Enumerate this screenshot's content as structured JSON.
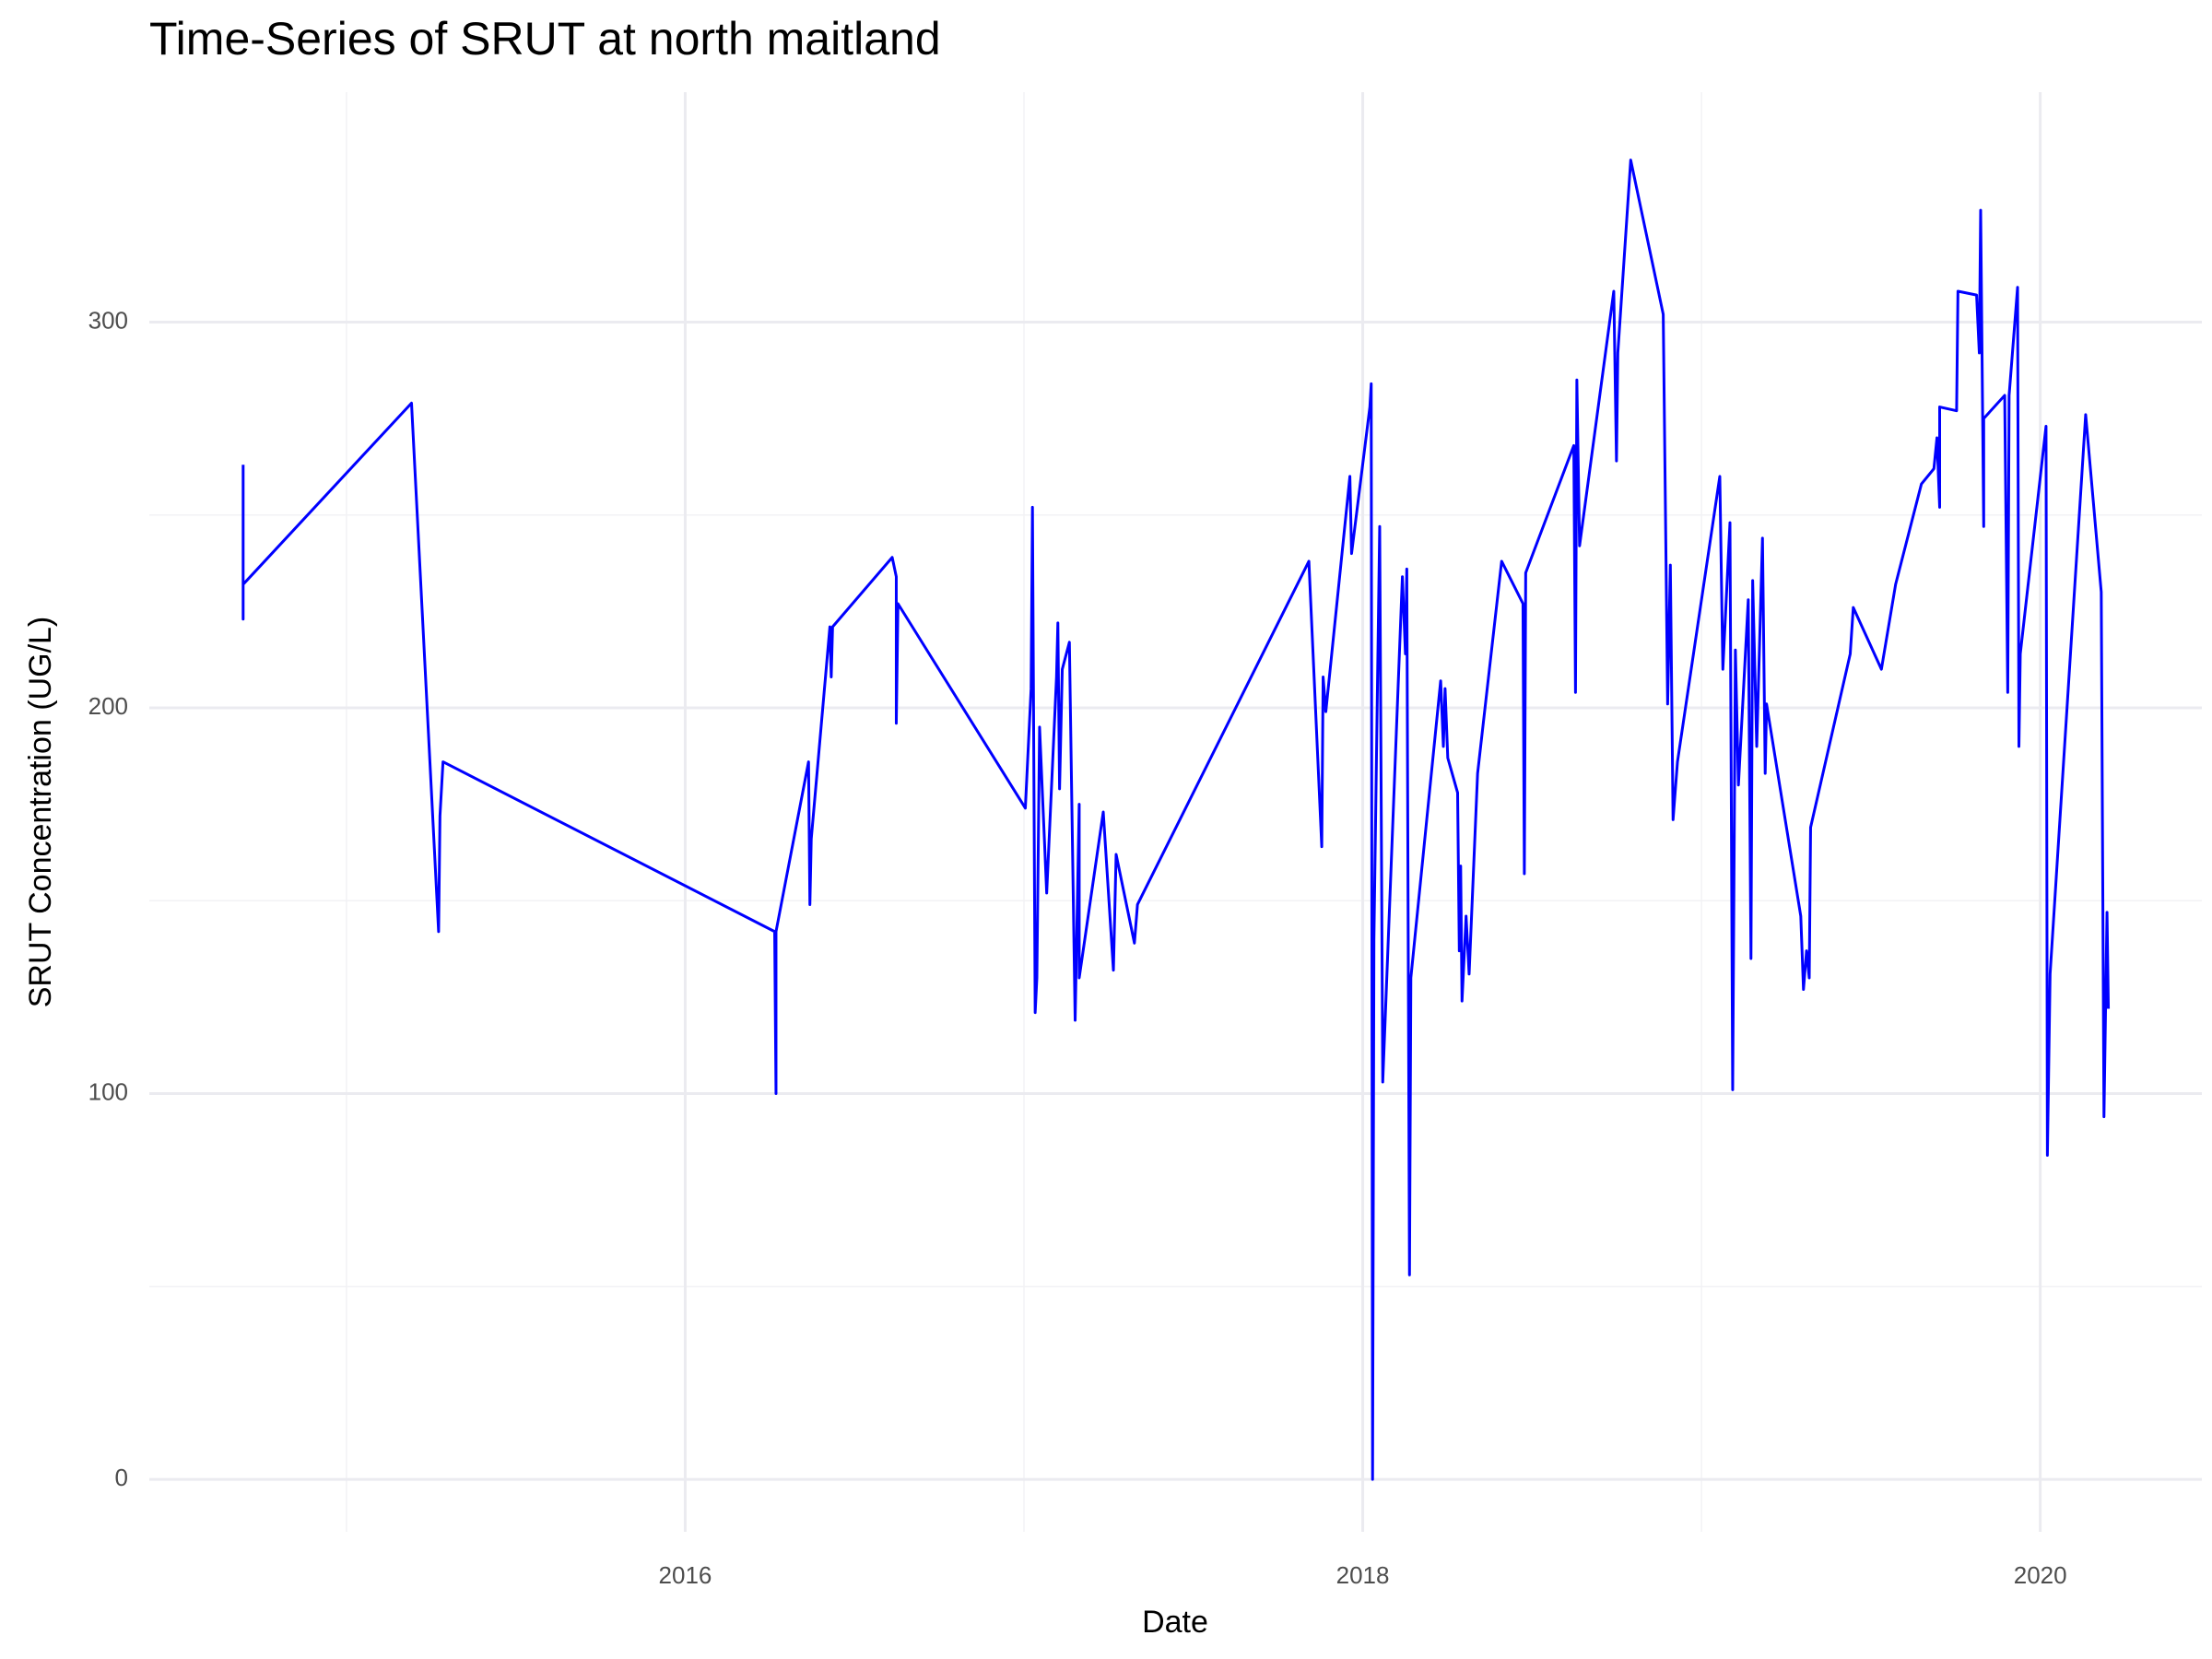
{
  "chart_data": {
    "type": "line",
    "title": "Time-Series of SRUT at north maitland",
    "x_label": "Date",
    "y_label": "SRUT Concentration (UG/L)",
    "x": [
      2014.695,
      2014.695,
      2014.695,
      2015.192,
      2015.272,
      2015.276,
      2015.285,
      2016.264,
      2016.268,
      2016.268,
      2016.364,
      2016.368,
      2016.372,
      2016.427,
      2016.431,
      2016.435,
      2016.611,
      2016.623,
      2016.623,
      2016.628,
      2017.004,
      2017.021,
      2017.025,
      2017.033,
      2017.038,
      2017.046,
      2017.067,
      2017.096,
      2017.1,
      2017.105,
      2017.113,
      2017.134,
      2017.151,
      2017.163,
      2017.163,
      2017.234,
      2017.264,
      2017.272,
      2017.326,
      2017.335,
      2017.841,
      2017.879,
      2017.883,
      2017.891,
      2017.962,
      2017.967,
      2018.021,
      2018.025,
      2018.029,
      2018.033,
      2018.05,
      2018.059,
      2018.117,
      2018.126,
      2018.13,
      2018.138,
      2018.142,
      2018.23,
      2018.238,
      2018.243,
      2018.251,
      2018.28,
      2018.285,
      2018.289,
      2018.293,
      2018.305,
      2018.314,
      2018.339,
      2018.41,
      2018.473,
      2018.477,
      2018.481,
      2018.623,
      2018.628,
      2018.632,
      2018.64,
      2018.741,
      2018.749,
      2018.753,
      2018.791,
      2018.887,
      2018.9,
      2018.908,
      2018.916,
      2018.929,
      2019.054,
      2019.063,
      2019.084,
      2019.092,
      2019.1,
      2019.109,
      2019.138,
      2019.146,
      2019.151,
      2019.163,
      2019.18,
      2019.188,
      2019.192,
      2019.293,
      2019.301,
      2019.31,
      2019.318,
      2019.322,
      2019.439,
      2019.448,
      2019.531,
      2019.573,
      2019.649,
      2019.686,
      2019.695,
      2019.703,
      2019.703,
      2019.753,
      2019.757,
      2019.812,
      2019.82,
      2019.824,
      2019.833,
      2019.833,
      2019.895,
      2019.904,
      2019.908,
      2019.933,
      2019.937,
      2019.941,
      2020.017,
      2020.021,
      2020.029,
      2020.134,
      2020.18,
      2020.188,
      2020.197,
      2020.201
    ],
    "values": [
      263,
      223,
      232,
      279,
      142,
      172,
      186,
      142,
      100,
      142,
      186,
      149,
      166,
      221,
      208,
      221,
      239,
      234,
      196,
      227,
      174,
      205,
      252,
      121,
      130,
      195,
      152,
      208,
      222,
      179,
      210,
      217,
      119,
      175,
      130,
      173,
      132,
      162,
      139,
      149,
      238,
      164,
      208,
      199,
      260,
      240,
      278,
      284,
      0,
      140,
      247,
      103,
      234,
      214,
      236,
      53,
      130,
      207,
      190,
      205,
      187,
      178,
      137,
      159,
      124,
      146,
      131,
      183,
      238,
      227,
      157,
      235,
      268,
      204,
      285,
      242,
      308,
      264,
      292,
      342,
      302,
      201,
      237,
      171,
      186,
      260,
      210,
      248,
      101,
      215,
      180,
      228,
      135,
      233,
      190,
      244,
      183,
      201,
      146,
      127,
      137,
      130,
      169,
      214,
      226,
      210,
      232,
      258,
      262,
      270,
      252,
      278,
      277,
      308,
      307,
      292,
      329,
      247,
      275,
      281,
      204,
      281,
      309,
      190,
      214,
      273,
      84,
      131,
      276,
      230,
      94,
      147,
      122
    ],
    "color": "#0000ff",
    "xlim": [
      2014.418,
      2020.477
    ],
    "ylim": [
      -13.6,
      359.6
    ],
    "xticks": [
      2016,
      2018,
      2020
    ],
    "yticks": [
      0,
      100,
      200,
      300
    ],
    "x_minor_ticks": [
      2015,
      2017,
      2019
    ],
    "y_minor_ticks": [
      50,
      150,
      250
    ],
    "grid": true
  }
}
